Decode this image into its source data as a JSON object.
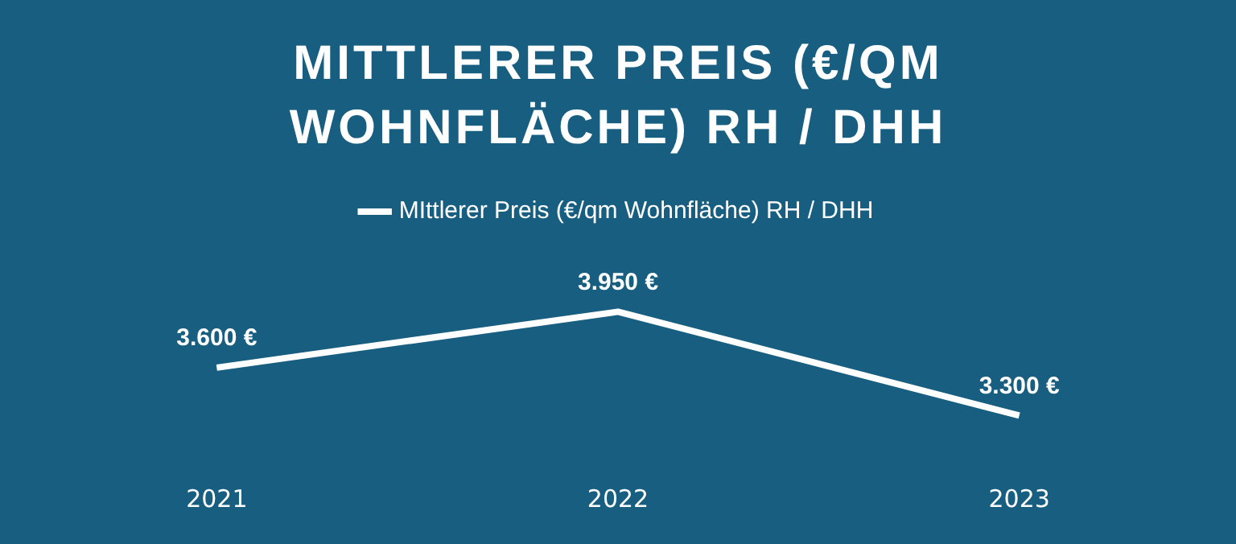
{
  "chart_data": {
    "type": "line",
    "title": "MITTLERER PREIS (€/QM WOHNFLÄCHE) RH / DHH",
    "categories": [
      "2021",
      "2022",
      "2023"
    ],
    "series": [
      {
        "name": "MIttlerer Preis (€/qm Wohnfläche) RH / DHH",
        "color": "#ffffff",
        "values": [
          3600,
          3950,
          3300
        ],
        "value_labels": [
          "3.600 €",
          "3.950 €",
          "3.300 €"
        ]
      }
    ],
    "legend": "top",
    "grid": false,
    "marker": "none",
    "line_style": "solid"
  }
}
